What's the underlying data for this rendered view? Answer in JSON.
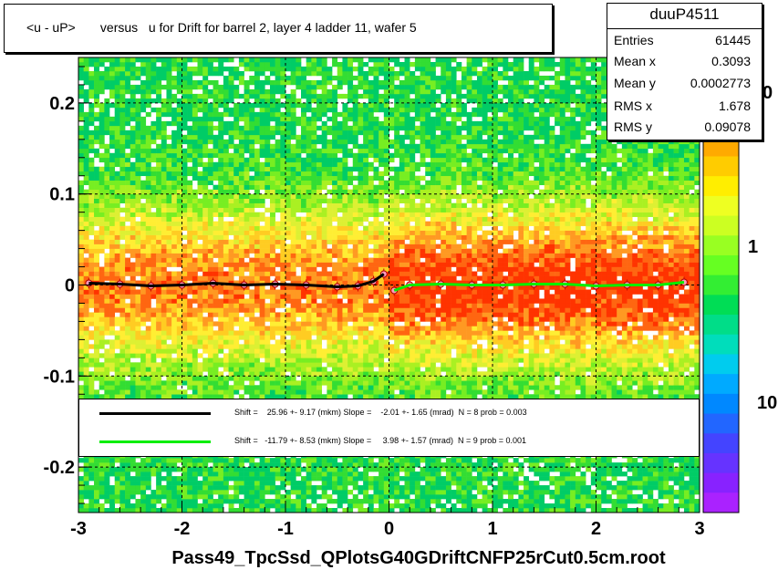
{
  "title": "<u - uP>       versus   u for Drift for barrel 2, layer 4 ladder 11, wafer 5",
  "stats": {
    "name": "duuP4511",
    "rows": [
      {
        "label": "Entries",
        "value": "61445"
      },
      {
        "label": "Mean x",
        "value": "0.3093"
      },
      {
        "label": "Mean y",
        "value": "0.0002773"
      },
      {
        "label": "RMS x",
        "value": "1.678"
      },
      {
        "label": "RMS y",
        "value": "0.09078"
      }
    ]
  },
  "fits": [
    {
      "color": "#000000",
      "text": "Shift =    25.96 +- 9.17 (mkm) Slope =    -2.01 +- 1.65 (mrad)  N = 8 prob = 0.003"
    },
    {
      "color": "#00ee00",
      "text": "Shift =   -11.79 +- 8.53 (mkm) Slope =     3.98 +- 1.57 (mrad)  N = 9 prob = 0.001"
    }
  ],
  "colorbar": {
    "tick_labels": [
      "1",
      "10"
    ],
    "top_label": "0"
  },
  "chart_data": {
    "type": "heatmap",
    "title": "<u - uP>       versus   u for Drift for barrel 2, layer 4 ladder 11, wafer 5",
    "xlabel": "Pass49_TpcSsd_QPlotsG40GDriftCNFP25rCut0.5cm.root",
    "ylabel": "",
    "xlim": [
      -3,
      3
    ],
    "ylim": [
      -0.25,
      0.25
    ],
    "x_ticks": [
      -3,
      -2,
      -1,
      0,
      1,
      2,
      3
    ],
    "y_ticks": [
      -0.2,
      -0.1,
      0,
      0.1,
      0.2
    ],
    "x_tick_labels": [
      "-3",
      "-2",
      "-1",
      "0",
      "1",
      "2",
      "3"
    ],
    "y_tick_labels": [
      "-0.2",
      "-0.1",
      "0",
      "0.1",
      "0.2"
    ],
    "grid": true,
    "colorscale": "log",
    "series": [
      {
        "name": "",
        "style": "profile",
        "color": "#000000",
        "x": [
          -2.9,
          -2.6,
          -2.3,
          -2.0,
          -1.7,
          -1.4,
          -1.1,
          -0.8,
          -0.5,
          -0.3,
          -0.15,
          -0.05
        ],
        "y": [
          0.002,
          0.001,
          -0.001,
          0.0,
          0.002,
          0.0,
          0.001,
          0.0,
          -0.002,
          -0.001,
          0.004,
          0.012
        ]
      },
      {
        "name": "",
        "style": "profile",
        "color": "#00ee00",
        "x": [
          0.05,
          0.2,
          0.5,
          0.8,
          1.1,
          1.4,
          1.7,
          2.0,
          2.3,
          2.6,
          2.85
        ],
        "y": [
          -0.006,
          0.0,
          0.001,
          0.0,
          0.0,
          0.001,
          0.001,
          -0.001,
          0.0,
          0.0,
          0.003
        ]
      }
    ]
  }
}
